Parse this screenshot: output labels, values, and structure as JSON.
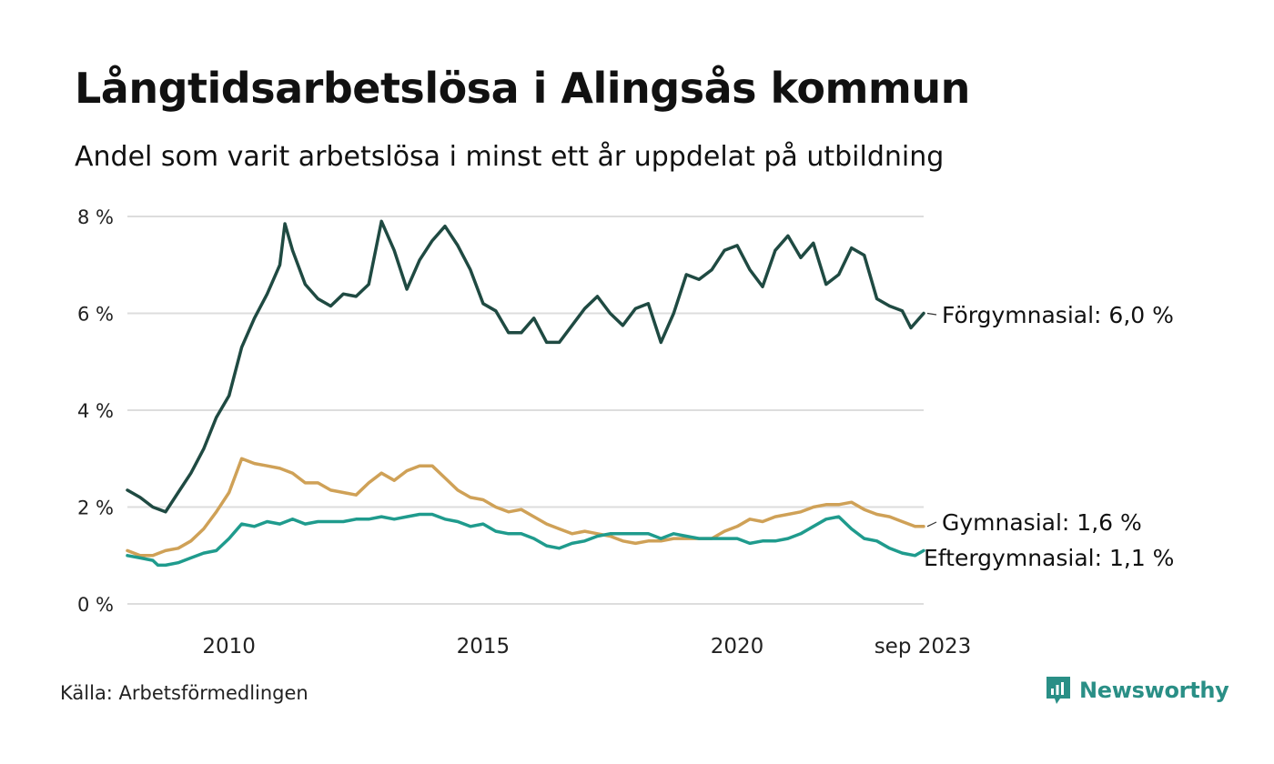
{
  "chart_data": {
    "type": "line",
    "title": "Långtidsarbetslösa i Alingsås kommun",
    "subtitle": "Andel som varit arbetslösa i minst ett år uppdelat på utbildning",
    "xlabel": "",
    "ylabel": "",
    "ylim": [
      0,
      8
    ],
    "xlim": [
      2008.0,
      2023.67
    ],
    "y_ticks": [
      {
        "value": 0,
        "label": "0 %"
      },
      {
        "value": 2,
        "label": "2 %"
      },
      {
        "value": 4,
        "label": "4 %"
      },
      {
        "value": 6,
        "label": "6 %"
      },
      {
        "value": 8,
        "label": "8 %"
      }
    ],
    "x_ticks": [
      {
        "value": 2010,
        "label": "2010"
      },
      {
        "value": 2015,
        "label": "2015"
      },
      {
        "value": 2020,
        "label": "2020"
      },
      {
        "value": 2023.67,
        "label": "sep 2023"
      }
    ],
    "grid": true,
    "series": [
      {
        "name": "Förgymnasial",
        "label": "Förgymnasial: 6,0 %",
        "color": "#1f4a42",
        "points": [
          [
            2008.0,
            2.35
          ],
          [
            2008.25,
            2.2
          ],
          [
            2008.5,
            2.0
          ],
          [
            2008.75,
            1.9
          ],
          [
            2009.0,
            2.3
          ],
          [
            2009.25,
            2.7
          ],
          [
            2009.5,
            3.2
          ],
          [
            2009.75,
            3.85
          ],
          [
            2010.0,
            4.3
          ],
          [
            2010.25,
            5.3
          ],
          [
            2010.5,
            5.9
          ],
          [
            2010.75,
            6.4
          ],
          [
            2011.0,
            7.0
          ],
          [
            2011.1,
            7.85
          ],
          [
            2011.25,
            7.3
          ],
          [
            2011.5,
            6.6
          ],
          [
            2011.75,
            6.3
          ],
          [
            2012.0,
            6.15
          ],
          [
            2012.25,
            6.4
          ],
          [
            2012.5,
            6.35
          ],
          [
            2012.75,
            6.6
          ],
          [
            2013.0,
            7.9
          ],
          [
            2013.25,
            7.3
          ],
          [
            2013.5,
            6.5
          ],
          [
            2013.75,
            7.1
          ],
          [
            2014.0,
            7.5
          ],
          [
            2014.25,
            7.8
          ],
          [
            2014.5,
            7.4
          ],
          [
            2014.75,
            6.9
          ],
          [
            2015.0,
            6.2
          ],
          [
            2015.25,
            6.05
          ],
          [
            2015.5,
            5.6
          ],
          [
            2015.75,
            5.6
          ],
          [
            2016.0,
            5.9
          ],
          [
            2016.25,
            5.4
          ],
          [
            2016.5,
            5.4
          ],
          [
            2016.75,
            5.75
          ],
          [
            2017.0,
            6.1
          ],
          [
            2017.25,
            6.35
          ],
          [
            2017.5,
            6.0
          ],
          [
            2017.75,
            5.75
          ],
          [
            2018.0,
            6.1
          ],
          [
            2018.25,
            6.2
          ],
          [
            2018.5,
            5.4
          ],
          [
            2018.75,
            6.0
          ],
          [
            2019.0,
            6.8
          ],
          [
            2019.25,
            6.7
          ],
          [
            2019.5,
            6.9
          ],
          [
            2019.75,
            7.3
          ],
          [
            2020.0,
            7.4
          ],
          [
            2020.25,
            6.9
          ],
          [
            2020.5,
            6.55
          ],
          [
            2020.75,
            7.3
          ],
          [
            2021.0,
            7.6
          ],
          [
            2021.25,
            7.15
          ],
          [
            2021.5,
            7.45
          ],
          [
            2021.75,
            6.6
          ],
          [
            2022.0,
            6.8
          ],
          [
            2022.25,
            7.35
          ],
          [
            2022.5,
            7.2
          ],
          [
            2022.75,
            6.3
          ],
          [
            2023.0,
            6.15
          ],
          [
            2023.25,
            6.05
          ],
          [
            2023.42,
            5.7
          ],
          [
            2023.67,
            6.0
          ]
        ]
      },
      {
        "name": "Gymnasial",
        "label": "Gymnasial: 1,6 %",
        "color": "#cfa157",
        "points": [
          [
            2008.0,
            1.1
          ],
          [
            2008.25,
            1.0
          ],
          [
            2008.5,
            1.0
          ],
          [
            2008.75,
            1.1
          ],
          [
            2009.0,
            1.15
          ],
          [
            2009.25,
            1.3
          ],
          [
            2009.5,
            1.55
          ],
          [
            2009.75,
            1.9
          ],
          [
            2010.0,
            2.3
          ],
          [
            2010.25,
            3.0
          ],
          [
            2010.5,
            2.9
          ],
          [
            2010.75,
            2.85
          ],
          [
            2011.0,
            2.8
          ],
          [
            2011.25,
            2.7
          ],
          [
            2011.5,
            2.5
          ],
          [
            2011.75,
            2.5
          ],
          [
            2012.0,
            2.35
          ],
          [
            2012.25,
            2.3
          ],
          [
            2012.5,
            2.25
          ],
          [
            2012.75,
            2.5
          ],
          [
            2013.0,
            2.7
          ],
          [
            2013.25,
            2.55
          ],
          [
            2013.5,
            2.75
          ],
          [
            2013.75,
            2.85
          ],
          [
            2014.0,
            2.85
          ],
          [
            2014.25,
            2.6
          ],
          [
            2014.5,
            2.35
          ],
          [
            2014.75,
            2.2
          ],
          [
            2015.0,
            2.15
          ],
          [
            2015.25,
            2.0
          ],
          [
            2015.5,
            1.9
          ],
          [
            2015.75,
            1.95
          ],
          [
            2016.0,
            1.8
          ],
          [
            2016.25,
            1.65
          ],
          [
            2016.5,
            1.55
          ],
          [
            2016.75,
            1.45
          ],
          [
            2017.0,
            1.5
          ],
          [
            2017.25,
            1.45
          ],
          [
            2017.5,
            1.4
          ],
          [
            2017.75,
            1.3
          ],
          [
            2018.0,
            1.25
          ],
          [
            2018.25,
            1.3
          ],
          [
            2018.5,
            1.3
          ],
          [
            2018.75,
            1.35
          ],
          [
            2019.0,
            1.35
          ],
          [
            2019.25,
            1.35
          ],
          [
            2019.5,
            1.35
          ],
          [
            2019.75,
            1.5
          ],
          [
            2020.0,
            1.6
          ],
          [
            2020.25,
            1.75
          ],
          [
            2020.5,
            1.7
          ],
          [
            2020.75,
            1.8
          ],
          [
            2021.0,
            1.85
          ],
          [
            2021.25,
            1.9
          ],
          [
            2021.5,
            2.0
          ],
          [
            2021.75,
            2.05
          ],
          [
            2022.0,
            2.05
          ],
          [
            2022.25,
            2.1
          ],
          [
            2022.5,
            1.95
          ],
          [
            2022.75,
            1.85
          ],
          [
            2023.0,
            1.8
          ],
          [
            2023.25,
            1.7
          ],
          [
            2023.5,
            1.6
          ],
          [
            2023.67,
            1.6
          ]
        ]
      },
      {
        "name": "Eftergymnasial",
        "label": "Eftergymnasial: 1,1 %",
        "color": "#1f9b8d",
        "points": [
          [
            2008.0,
            1.0
          ],
          [
            2008.25,
            0.95
          ],
          [
            2008.5,
            0.9
          ],
          [
            2008.6,
            0.8
          ],
          [
            2008.75,
            0.8
          ],
          [
            2009.0,
            0.85
          ],
          [
            2009.25,
            0.95
          ],
          [
            2009.5,
            1.05
          ],
          [
            2009.75,
            1.1
          ],
          [
            2010.0,
            1.35
          ],
          [
            2010.25,
            1.65
          ],
          [
            2010.5,
            1.6
          ],
          [
            2010.75,
            1.7
          ],
          [
            2011.0,
            1.65
          ],
          [
            2011.25,
            1.75
          ],
          [
            2011.5,
            1.65
          ],
          [
            2011.75,
            1.7
          ],
          [
            2012.0,
            1.7
          ],
          [
            2012.25,
            1.7
          ],
          [
            2012.5,
            1.75
          ],
          [
            2012.75,
            1.75
          ],
          [
            2013.0,
            1.8
          ],
          [
            2013.25,
            1.75
          ],
          [
            2013.5,
            1.8
          ],
          [
            2013.75,
            1.85
          ],
          [
            2014.0,
            1.85
          ],
          [
            2014.25,
            1.75
          ],
          [
            2014.5,
            1.7
          ],
          [
            2014.75,
            1.6
          ],
          [
            2015.0,
            1.65
          ],
          [
            2015.25,
            1.5
          ],
          [
            2015.5,
            1.45
          ],
          [
            2015.75,
            1.45
          ],
          [
            2016.0,
            1.35
          ],
          [
            2016.25,
            1.2
          ],
          [
            2016.5,
            1.15
          ],
          [
            2016.75,
            1.25
          ],
          [
            2017.0,
            1.3
          ],
          [
            2017.25,
            1.4
          ],
          [
            2017.5,
            1.45
          ],
          [
            2017.75,
            1.45
          ],
          [
            2018.0,
            1.45
          ],
          [
            2018.25,
            1.45
          ],
          [
            2018.5,
            1.35
          ],
          [
            2018.75,
            1.45
          ],
          [
            2019.0,
            1.4
          ],
          [
            2019.25,
            1.35
          ],
          [
            2019.5,
            1.35
          ],
          [
            2019.75,
            1.35
          ],
          [
            2020.0,
            1.35
          ],
          [
            2020.25,
            1.25
          ],
          [
            2020.5,
            1.3
          ],
          [
            2020.75,
            1.3
          ],
          [
            2021.0,
            1.35
          ],
          [
            2021.25,
            1.45
          ],
          [
            2021.5,
            1.6
          ],
          [
            2021.75,
            1.75
          ],
          [
            2022.0,
            1.8
          ],
          [
            2022.25,
            1.55
          ],
          [
            2022.5,
            1.35
          ],
          [
            2022.75,
            1.3
          ],
          [
            2023.0,
            1.15
          ],
          [
            2023.25,
            1.05
          ],
          [
            2023.5,
            1.0
          ],
          [
            2023.67,
            1.1
          ]
        ]
      }
    ]
  },
  "source": "Källa: Arbetsförmedlingen",
  "brand": {
    "name": "Newsworthy",
    "color": "#2a8f86"
  }
}
